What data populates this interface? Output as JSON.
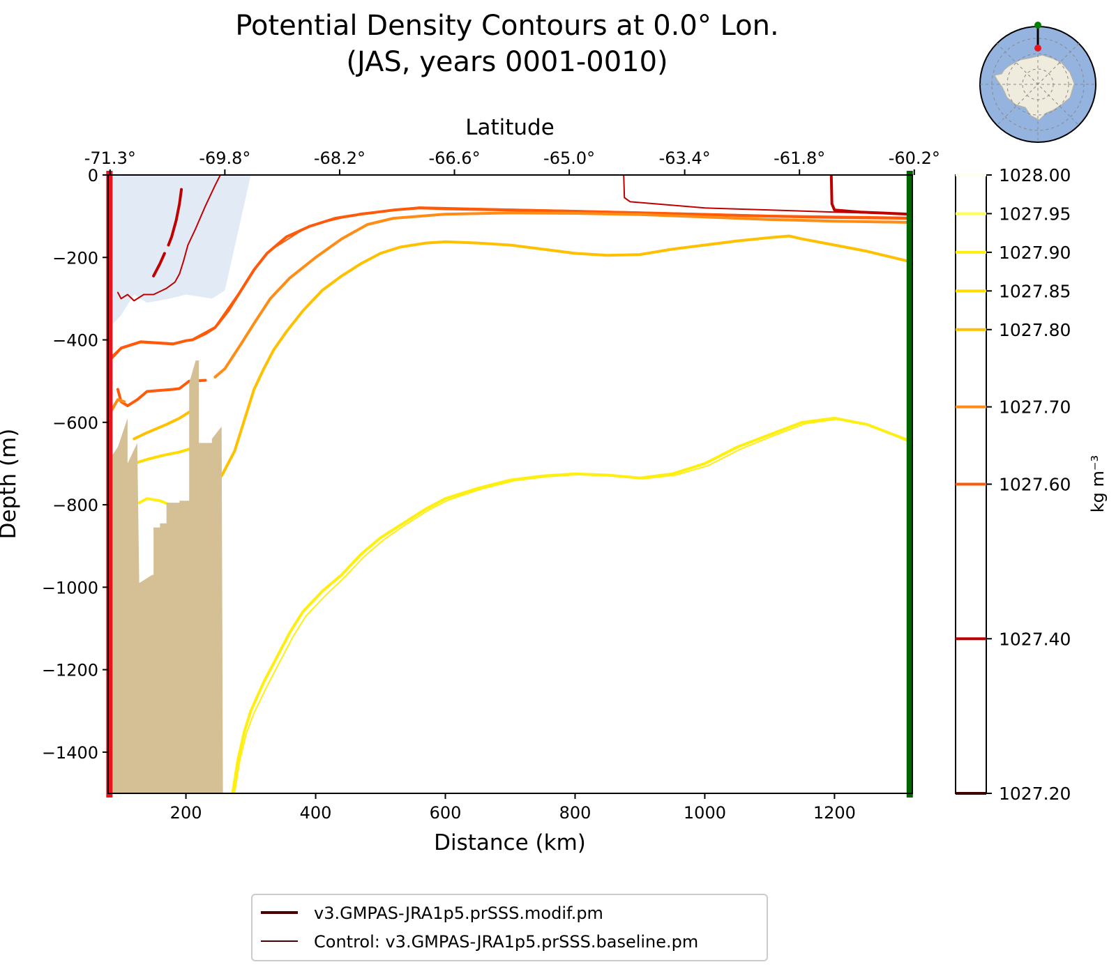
{
  "chart_data": {
    "type": "line",
    "title": "Potential Density Contours at 0.0° Lon.",
    "subtitle": "(JAS, years 0001-0010)",
    "xlabel": "Distance (km)",
    "ylabel": "Depth (m)",
    "top_xlabel": "Latitude",
    "xlim": [
      80,
      1320
    ],
    "ylim": [
      -1500,
      0
    ],
    "x_ticks": [
      200,
      400,
      600,
      800,
      1000,
      1200
    ],
    "y_ticks": [
      0,
      -200,
      -400,
      -600,
      -800,
      -1000,
      -1200,
      -1400
    ],
    "top_ticks": [
      {
        "x": 83,
        "label": "-71.3°"
      },
      {
        "x": 260,
        "label": "-69.8°"
      },
      {
        "x": 437,
        "label": "-68.2°"
      },
      {
        "x": 614,
        "label": "-66.6°"
      },
      {
        "x": 791,
        "label": "-65.0°"
      },
      {
        "x": 969,
        "label": "-63.4°"
      },
      {
        "x": 1146,
        "label": "-61.8°"
      },
      {
        "x": 1323,
        "label": "-60.2°"
      }
    ],
    "grid": false,
    "legend_position": "bottom-center",
    "colorbar": {
      "label": "kg m⁻³",
      "levels": [
        1027.2,
        1027.4,
        1027.6,
        1027.7,
        1027.8,
        1027.85,
        1027.9,
        1027.95,
        1028.0
      ],
      "tick_labels": [
        "1027.20",
        "1027.40",
        "1027.60",
        "1027.70",
        "1027.80",
        "1027.85",
        "1027.90",
        "1027.95",
        "1028.00"
      ],
      "colors": [
        "#3d0000",
        "#c00000",
        "#ff5a0a",
        "#ff8c14",
        "#ffc000",
        "#ffdb00",
        "#ffef10",
        "#ffff50",
        "#fffff0"
      ]
    },
    "section_markers": {
      "start_color": "#e8141e",
      "end_color": "#006400",
      "start_x": 82,
      "end_x": 1316
    },
    "ice_shelf_color": "#e1eaf5",
    "seafloor_color": "#d5bf95",
    "ice_shelf_outline": [
      [
        82,
        0
      ],
      [
        300,
        0
      ],
      [
        260,
        -280
      ],
      [
        240,
        -300
      ],
      [
        200,
        -290
      ],
      [
        175,
        -300
      ],
      [
        140,
        -310
      ],
      [
        120,
        -290
      ],
      [
        100,
        -340
      ],
      [
        82,
        -370
      ]
    ],
    "seafloor_outline": [
      [
        82,
        -1500
      ],
      [
        82,
        -690
      ],
      [
        95,
        -660
      ],
      [
        110,
        -590
      ],
      [
        110,
        -700
      ],
      [
        125,
        -650
      ],
      [
        128,
        -990
      ],
      [
        148,
        -970
      ],
      [
        150,
        -970
      ],
      [
        150,
        -855
      ],
      [
        160,
        -855
      ],
      [
        160,
        -845
      ],
      [
        170,
        -845
      ],
      [
        170,
        -795
      ],
      [
        190,
        -795
      ],
      [
        190,
        -790
      ],
      [
        205,
        -790
      ],
      [
        205,
        -505
      ],
      [
        215,
        -450
      ],
      [
        220,
        -450
      ],
      [
        220,
        -650
      ],
      [
        240,
        -650
      ],
      [
        240,
        -640
      ],
      [
        255,
        -610
      ],
      [
        257,
        -1500
      ]
    ],
    "series": [
      {
        "name": "v3.GMPAS-JRA1p5.prSSS.modif.pm",
        "level": 1027.4,
        "color": "#c00000",
        "width": 4,
        "segments": [
          [
            [
              193,
              -35
            ],
            [
              190,
              -70
            ],
            [
              185,
              -110
            ],
            [
              178,
              -150
            ],
            [
              173,
              -170
            ]
          ],
          [
            [
              167,
              -190
            ],
            [
              160,
              -215
            ],
            [
              150,
              -245
            ]
          ],
          [
            [
              1195,
              0
            ],
            [
              1196,
              -70
            ],
            [
              1200,
              -85
            ],
            [
              1240,
              -90
            ],
            [
              1316,
              -95
            ]
          ]
        ]
      },
      {
        "name": "Control: v3.GMPAS-JRA1p5.prSSS.baseline.pm",
        "level": 1027.4,
        "color": "#c00000",
        "width": 2,
        "segments": [
          [
            [
              253,
              0
            ],
            [
              245,
              -25
            ],
            [
              230,
              -75
            ],
            [
              215,
              -130
            ],
            [
              203,
              -170
            ],
            [
              196,
              -210
            ],
            [
              190,
              -240
            ],
            [
              183,
              -260
            ],
            [
              170,
              -275
            ],
            [
              150,
              -290
            ],
            [
              135,
              -290
            ],
            [
              120,
              -305
            ],
            [
              110,
              -290
            ],
            [
              100,
              -300
            ],
            [
              95,
              -285
            ]
          ],
          [
            [
              875,
              0
            ],
            [
              876,
              -55
            ],
            [
              885,
              -65
            ],
            [
              1000,
              -80
            ],
            [
              1200,
              -90
            ],
            [
              1316,
              -95
            ]
          ]
        ]
      },
      {
        "name": "v3.GMPAS-JRA1p5.prSSS.modif.pm",
        "level": 1027.6,
        "color": "#ff5a0a",
        "width": 4,
        "segments": [
          [
            [
              82,
              -450
            ],
            [
              100,
              -420
            ],
            [
              130,
              -405
            ],
            [
              180,
              -410
            ],
            [
              200,
              -402
            ],
            [
              210,
              -400
            ],
            [
              230,
              -385
            ],
            [
              245,
              -370
            ],
            [
              265,
              -330
            ],
            [
              285,
              -280
            ],
            [
              305,
              -230
            ],
            [
              325,
              -190
            ],
            [
              355,
              -150
            ],
            [
              390,
              -125
            ],
            [
              430,
              -105
            ],
            [
              470,
              -95
            ],
            [
              520,
              -85
            ],
            [
              560,
              -80
            ],
            [
              600,
              -82
            ],
            [
              700,
              -85
            ],
            [
              800,
              -88
            ],
            [
              900,
              -92
            ],
            [
              1000,
              -96
            ],
            [
              1100,
              -100
            ],
            [
              1200,
              -103
            ],
            [
              1316,
              -105
            ]
          ],
          [
            [
              95,
              -520
            ],
            [
              100,
              -550
            ],
            [
              110,
              -560
            ],
            [
              125,
              -545
            ],
            [
              140,
              -525
            ],
            [
              180,
              -520
            ],
            [
              190,
              -518
            ],
            [
              205,
              -500
            ],
            [
              230,
              -498
            ]
          ]
        ]
      },
      {
        "name": "Control: v3.GMPAS-JRA1p5.prSSS.baseline.pm",
        "level": 1027.6,
        "color": "#ff5a0a",
        "width": 2,
        "segments": [
          [
            [
              82,
              -445
            ],
            [
              100,
              -418
            ],
            [
              130,
              -403
            ],
            [
              180,
              -408
            ],
            [
              210,
              -398
            ],
            [
              245,
              -368
            ],
            [
              285,
              -278
            ],
            [
              325,
              -188
            ],
            [
              390,
              -123
            ],
            [
              470,
              -93
            ],
            [
              560,
              -78
            ],
            [
              700,
              -83
            ],
            [
              900,
              -90
            ],
            [
              1100,
              -98
            ],
            [
              1316,
              -103
            ]
          ]
        ]
      },
      {
        "name": "v3.GMPAS-JRA1p5.prSSS.modif.pm",
        "level": 1027.7,
        "color": "#ff8c14",
        "width": 4,
        "segments": [
          [
            [
              82,
              -580
            ],
            [
              95,
              -545
            ],
            [
              105,
              -550
            ]
          ],
          [
            [
              245,
              -490
            ],
            [
              260,
              -470
            ],
            [
              285,
              -410
            ],
            [
              305,
              -360
            ],
            [
              330,
              -300
            ],
            [
              360,
              -250
            ],
            [
              400,
              -200
            ],
            [
              440,
              -155
            ],
            [
              480,
              -120
            ],
            [
              520,
              -105
            ],
            [
              600,
              -95
            ],
            [
              700,
              -92
            ],
            [
              800,
              -93
            ],
            [
              900,
              -96
            ],
            [
              1000,
              -102
            ],
            [
              1100,
              -108
            ],
            [
              1200,
              -112
            ],
            [
              1316,
              -115
            ]
          ]
        ]
      },
      {
        "name": "v3.GMPAS-JRA1p5.prSSS.modif.pm",
        "level": 1027.8,
        "color": "#ffc000",
        "width": 4,
        "segments": [
          [
            [
              120,
              -640
            ],
            [
              140,
              -625
            ],
            [
              170,
              -605
            ],
            [
              190,
              -590
            ],
            [
              210,
              -570
            ]
          ],
          [
            [
              255,
              -730
            ],
            [
              265,
              -700
            ],
            [
              275,
              -670
            ],
            [
              285,
              -620
            ],
            [
              295,
              -570
            ],
            [
              305,
              -520
            ],
            [
              320,
              -470
            ],
            [
              335,
              -425
            ],
            [
              355,
              -380
            ],
            [
              380,
              -330
            ],
            [
              410,
              -280
            ],
            [
              440,
              -245
            ],
            [
              470,
              -215
            ],
            [
              500,
              -190
            ],
            [
              530,
              -175
            ],
            [
              570,
              -165
            ],
            [
              600,
              -162
            ],
            [
              650,
              -165
            ],
            [
              700,
              -170
            ],
            [
              750,
              -180
            ],
            [
              800,
              -190
            ],
            [
              850,
              -195
            ],
            [
              900,
              -193
            ],
            [
              950,
              -180
            ],
            [
              1000,
              -170
            ],
            [
              1050,
              -160
            ],
            [
              1100,
              -152
            ],
            [
              1130,
              -148
            ],
            [
              1150,
              -155
            ],
            [
              1200,
              -170
            ],
            [
              1250,
              -185
            ],
            [
              1316,
              -210
            ]
          ]
        ]
      },
      {
        "name": "v3.GMPAS-JRA1p5.prSSS.modif.pm",
        "level": 1027.85,
        "color": "#ffdb00",
        "width": 4,
        "segments": [
          [
            [
              120,
              -700
            ],
            [
              140,
              -690
            ],
            [
              165,
              -680
            ],
            [
              190,
              -672
            ],
            [
              205,
              -665
            ]
          ]
        ]
      },
      {
        "name": "v3.GMPAS-JRA1p5.prSSS.modif.pm",
        "level": 1027.9,
        "color": "#ffef10",
        "width": 4,
        "segments": [
          [
            [
              128,
              -795
            ],
            [
              140,
              -785
            ],
            [
              160,
              -790
            ],
            [
              175,
              -800
            ]
          ],
          [
            [
              272,
              -1500
            ],
            [
              280,
              -1420
            ],
            [
              290,
              -1350
            ],
            [
              300,
              -1300
            ],
            [
              320,
              -1230
            ],
            [
              340,
              -1170
            ],
            [
              360,
              -1110
            ],
            [
              380,
              -1060
            ],
            [
              410,
              -1010
            ],
            [
              440,
              -970
            ],
            [
              470,
              -920
            ],
            [
              500,
              -880
            ],
            [
              530,
              -850
            ],
            [
              570,
              -810
            ],
            [
              600,
              -785
            ],
            [
              650,
              -760
            ],
            [
              700,
              -740
            ],
            [
              750,
              -730
            ],
            [
              800,
              -725
            ],
            [
              850,
              -728
            ],
            [
              900,
              -735
            ],
            [
              950,
              -725
            ],
            [
              1000,
              -700
            ],
            [
              1050,
              -660
            ],
            [
              1100,
              -630
            ],
            [
              1150,
              -600
            ],
            [
              1200,
              -590
            ],
            [
              1250,
              -605
            ],
            [
              1316,
              -645
            ]
          ]
        ]
      },
      {
        "name": "Control: v3.GMPAS-JRA1p5.prSSS.baseline.pm",
        "level": 1027.9,
        "color": "#ffef10",
        "width": 2,
        "segments": [
          [
            [
              275,
              -1500
            ],
            [
              283,
              -1420
            ],
            [
              293,
              -1355
            ],
            [
              305,
              -1305
            ],
            [
              325,
              -1240
            ],
            [
              345,
              -1180
            ],
            [
              365,
              -1120
            ],
            [
              385,
              -1070
            ],
            [
              415,
              -1020
            ],
            [
              445,
              -975
            ],
            [
              475,
              -925
            ],
            [
              505,
              -885
            ],
            [
              535,
              -852
            ],
            [
              575,
              -812
            ],
            [
              605,
              -788
            ],
            [
              655,
              -762
            ],
            [
              705,
              -742
            ],
            [
              755,
              -732
            ],
            [
              805,
              -727
            ],
            [
              855,
              -730
            ],
            [
              905,
              -737
            ],
            [
              955,
              -728
            ],
            [
              1005,
              -705
            ],
            [
              1055,
              -665
            ],
            [
              1105,
              -633
            ],
            [
              1155,
              -603
            ],
            [
              1205,
              -592
            ],
            [
              1255,
              -607
            ],
            [
              1316,
              -648
            ]
          ]
        ]
      }
    ],
    "legend": [
      {
        "label": "v3.GMPAS-JRA1p5.prSSS.modif.pm",
        "color": "#4a0000",
        "width": 4
      },
      {
        "label": "Control: v3.GMPAS-JRA1p5.prSSS.baseline.pm",
        "color": "#4a0000",
        "width": 2
      }
    ]
  }
}
